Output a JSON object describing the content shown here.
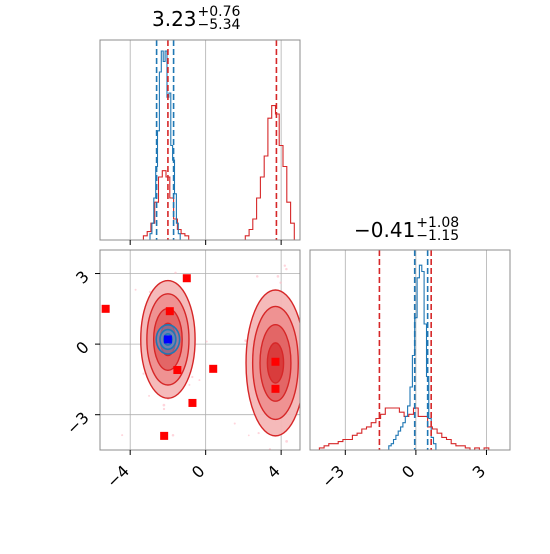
{
  "chart_data": [
    {
      "type": "histogram",
      "panel": "marginal-x",
      "title_value": "3.23",
      "title_plus": "+0.76",
      "title_minus": "−5.34",
      "xlim": [
        -5.6,
        5.0
      ],
      "red_series": {
        "color": "#d62728",
        "bins": [
          {
            "x": -3.2,
            "h": 0.02
          },
          {
            "x": -3.0,
            "h": 0.04
          },
          {
            "x": -2.8,
            "h": 0.08
          },
          {
            "x": -2.6,
            "h": 0.18
          },
          {
            "x": -2.4,
            "h": 0.3
          },
          {
            "x": -2.2,
            "h": 0.33
          },
          {
            "x": -2.0,
            "h": 0.3
          },
          {
            "x": -1.8,
            "h": 0.2
          },
          {
            "x": -1.6,
            "h": 0.1
          },
          {
            "x": -1.4,
            "h": 0.05
          },
          {
            "x": -1.2,
            "h": 0.03
          },
          {
            "x": -1.0,
            "h": 0.02
          },
          {
            "x": 2.2,
            "h": 0.02
          },
          {
            "x": 2.4,
            "h": 0.05
          },
          {
            "x": 2.6,
            "h": 0.1
          },
          {
            "x": 2.8,
            "h": 0.2
          },
          {
            "x": 3.0,
            "h": 0.3
          },
          {
            "x": 3.2,
            "h": 0.4
          },
          {
            "x": 3.4,
            "h": 0.58
          },
          {
            "x": 3.6,
            "h": 0.64
          },
          {
            "x": 3.8,
            "h": 0.6
          },
          {
            "x": 4.0,
            "h": 0.45
          },
          {
            "x": 4.2,
            "h": 0.35
          },
          {
            "x": 4.4,
            "h": 0.18
          },
          {
            "x": 4.6,
            "h": 0.08
          }
        ],
        "bin_width": 0.2,
        "quantile_lines": [
          -2.0,
          3.75
        ]
      },
      "blue_series": {
        "color": "#1f77b4",
        "bins": [
          {
            "x": -2.9,
            "h": 0.03
          },
          {
            "x": -2.8,
            "h": 0.08
          },
          {
            "x": -2.7,
            "h": 0.2
          },
          {
            "x": -2.6,
            "h": 0.35
          },
          {
            "x": -2.5,
            "h": 0.52
          },
          {
            "x": -2.4,
            "h": 0.8
          },
          {
            "x": -2.3,
            "h": 0.9
          },
          {
            "x": -2.2,
            "h": 0.85
          },
          {
            "x": -2.1,
            "h": 0.9
          },
          {
            "x": -2.0,
            "h": 0.68
          },
          {
            "x": -1.9,
            "h": 0.7
          },
          {
            "x": -1.8,
            "h": 0.45
          },
          {
            "x": -1.7,
            "h": 0.38
          },
          {
            "x": -1.6,
            "h": 0.22
          },
          {
            "x": -1.5,
            "h": 0.08
          },
          {
            "x": -1.4,
            "h": 0.03
          }
        ],
        "bin_width": 0.1,
        "quantile_lines": [
          -2.6,
          -1.7
        ]
      }
    },
    {
      "type": "scatter-contour",
      "panel": "joint",
      "xlim": [
        -5.6,
        5.0
      ],
      "ylim": [
        -4.5,
        4.0
      ],
      "xticks": [
        "−4",
        "0",
        "4"
      ],
      "xtick_values": [
        -4,
        0,
        4
      ],
      "yticks": [
        "3",
        "0",
        "−3"
      ],
      "ytick_values": [
        3,
        0,
        -3
      ],
      "red_points": [
        {
          "x": -5.3,
          "y": 1.5
        },
        {
          "x": -1.0,
          "y": 2.8
        },
        {
          "x": -1.9,
          "y": 1.4
        },
        {
          "x": -1.5,
          "y": -1.1
        },
        {
          "x": 0.4,
          "y": -1.05
        },
        {
          "x": -0.7,
          "y": -2.5
        },
        {
          "x": -2.2,
          "y": -3.9
        },
        {
          "x": 3.7,
          "y": -0.75
        },
        {
          "x": 3.7,
          "y": -1.9
        }
      ],
      "blue_point": {
        "x": -2.0,
        "y": 0.2
      },
      "red_modes": [
        {
          "cx": -2.0,
          "cy": 0.2
        },
        {
          "cx": 3.7,
          "cy": -0.8
        }
      ]
    },
    {
      "type": "histogram",
      "panel": "marginal-y",
      "title_value": "−0.41",
      "title_plus": "+1.08",
      "title_minus": "−1.15",
      "xlim": [
        -4.5,
        4.0
      ],
      "xticks": [
        "−3",
        "0",
        "3"
      ],
      "xtick_values": [
        -3,
        0,
        3
      ],
      "red_series": {
        "color": "#d62728",
        "bins": [
          {
            "x": -4.0,
            "h": 0.01
          },
          {
            "x": -3.8,
            "h": 0.02
          },
          {
            "x": -3.6,
            "h": 0.03
          },
          {
            "x": -3.4,
            "h": 0.03
          },
          {
            "x": -3.2,
            "h": 0.04
          },
          {
            "x": -3.0,
            "h": 0.05
          },
          {
            "x": -2.8,
            "h": 0.05
          },
          {
            "x": -2.6,
            "h": 0.07
          },
          {
            "x": -2.4,
            "h": 0.08
          },
          {
            "x": -2.2,
            "h": 0.1
          },
          {
            "x": -2.0,
            "h": 0.11
          },
          {
            "x": -1.8,
            "h": 0.13
          },
          {
            "x": -1.6,
            "h": 0.15
          },
          {
            "x": -1.4,
            "h": 0.17
          },
          {
            "x": -1.2,
            "h": 0.2
          },
          {
            "x": -1.0,
            "h": 0.2
          },
          {
            "x": -0.8,
            "h": 0.2
          },
          {
            "x": -0.6,
            "h": 0.18
          },
          {
            "x": -0.4,
            "h": 0.16
          },
          {
            "x": -0.2,
            "h": 0.17
          },
          {
            "x": 0.0,
            "h": 0.2
          },
          {
            "x": 0.2,
            "h": 0.16
          },
          {
            "x": 0.4,
            "h": 0.16
          },
          {
            "x": 0.6,
            "h": 0.11
          },
          {
            "x": 0.8,
            "h": 0.1
          },
          {
            "x": 1.0,
            "h": 0.08
          },
          {
            "x": 1.2,
            "h": 0.06
          },
          {
            "x": 1.4,
            "h": 0.05
          },
          {
            "x": 1.6,
            "h": 0.03
          },
          {
            "x": 1.8,
            "h": 0.02
          },
          {
            "x": 2.0,
            "h": 0.02
          },
          {
            "x": 2.2,
            "h": 0.01
          },
          {
            "x": 2.6,
            "h": 0.01
          },
          {
            "x": 3.0,
            "h": 0.01
          }
        ],
        "bin_width": 0.2,
        "quantile_lines": [
          -1.55,
          0.65
        ]
      },
      "blue_series": {
        "color": "#1f77b4",
        "bins": [
          {
            "x": -1.1,
            "h": 0.02
          },
          {
            "x": -1.0,
            "h": 0.03
          },
          {
            "x": -0.9,
            "h": 0.05
          },
          {
            "x": -0.8,
            "h": 0.07
          },
          {
            "x": -0.7,
            "h": 0.09
          },
          {
            "x": -0.6,
            "h": 0.11
          },
          {
            "x": -0.5,
            "h": 0.13
          },
          {
            "x": -0.4,
            "h": 0.16
          },
          {
            "x": -0.3,
            "h": 0.21
          },
          {
            "x": -0.2,
            "h": 0.3
          },
          {
            "x": -0.1,
            "h": 0.45
          },
          {
            "x": 0.0,
            "h": 0.63
          },
          {
            "x": 0.1,
            "h": 0.82
          },
          {
            "x": 0.2,
            "h": 0.88
          },
          {
            "x": 0.3,
            "h": 0.85
          },
          {
            "x": 0.4,
            "h": 0.6
          },
          {
            "x": 0.5,
            "h": 0.35
          },
          {
            "x": 0.6,
            "h": 0.15
          },
          {
            "x": 0.7,
            "h": 0.06
          },
          {
            "x": 0.8,
            "h": 0.03
          }
        ],
        "bin_width": 0.1,
        "quantile_lines": [
          -0.05,
          0.5
        ]
      }
    }
  ]
}
